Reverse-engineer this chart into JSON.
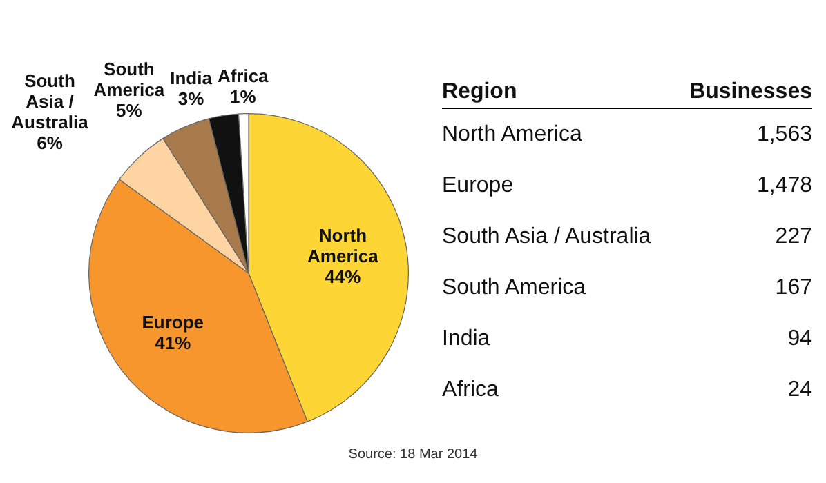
{
  "chart_data": [
    {
      "type": "pie",
      "categories": [
        "North America",
        "Europe",
        "South Asia / Australia",
        "South America",
        "India",
        "Africa"
      ],
      "values": [
        44,
        41,
        6,
        5,
        3,
        1
      ],
      "colors": [
        "#fdd535",
        "#f7962c",
        "#fdd4a2",
        "#a87a4c",
        "#111111",
        "#ffffff"
      ],
      "value_labels": [
        "44%",
        "41%",
        "6%",
        "5%",
        "3%",
        "1%"
      ],
      "annotations": [
        "Source: 18 Mar 2014"
      ],
      "legend": false
    },
    {
      "type": "other",
      "categories": [
        "North America",
        "Europe",
        "South Asia / Australia",
        "South America",
        "India",
        "Africa"
      ],
      "value_labels": [
        "1,563",
        "1,478",
        "227",
        "167",
        "94",
        "24"
      ],
      "annotations": [
        "Region",
        "Businesses"
      ],
      "data_labels": true
    }
  ]
}
